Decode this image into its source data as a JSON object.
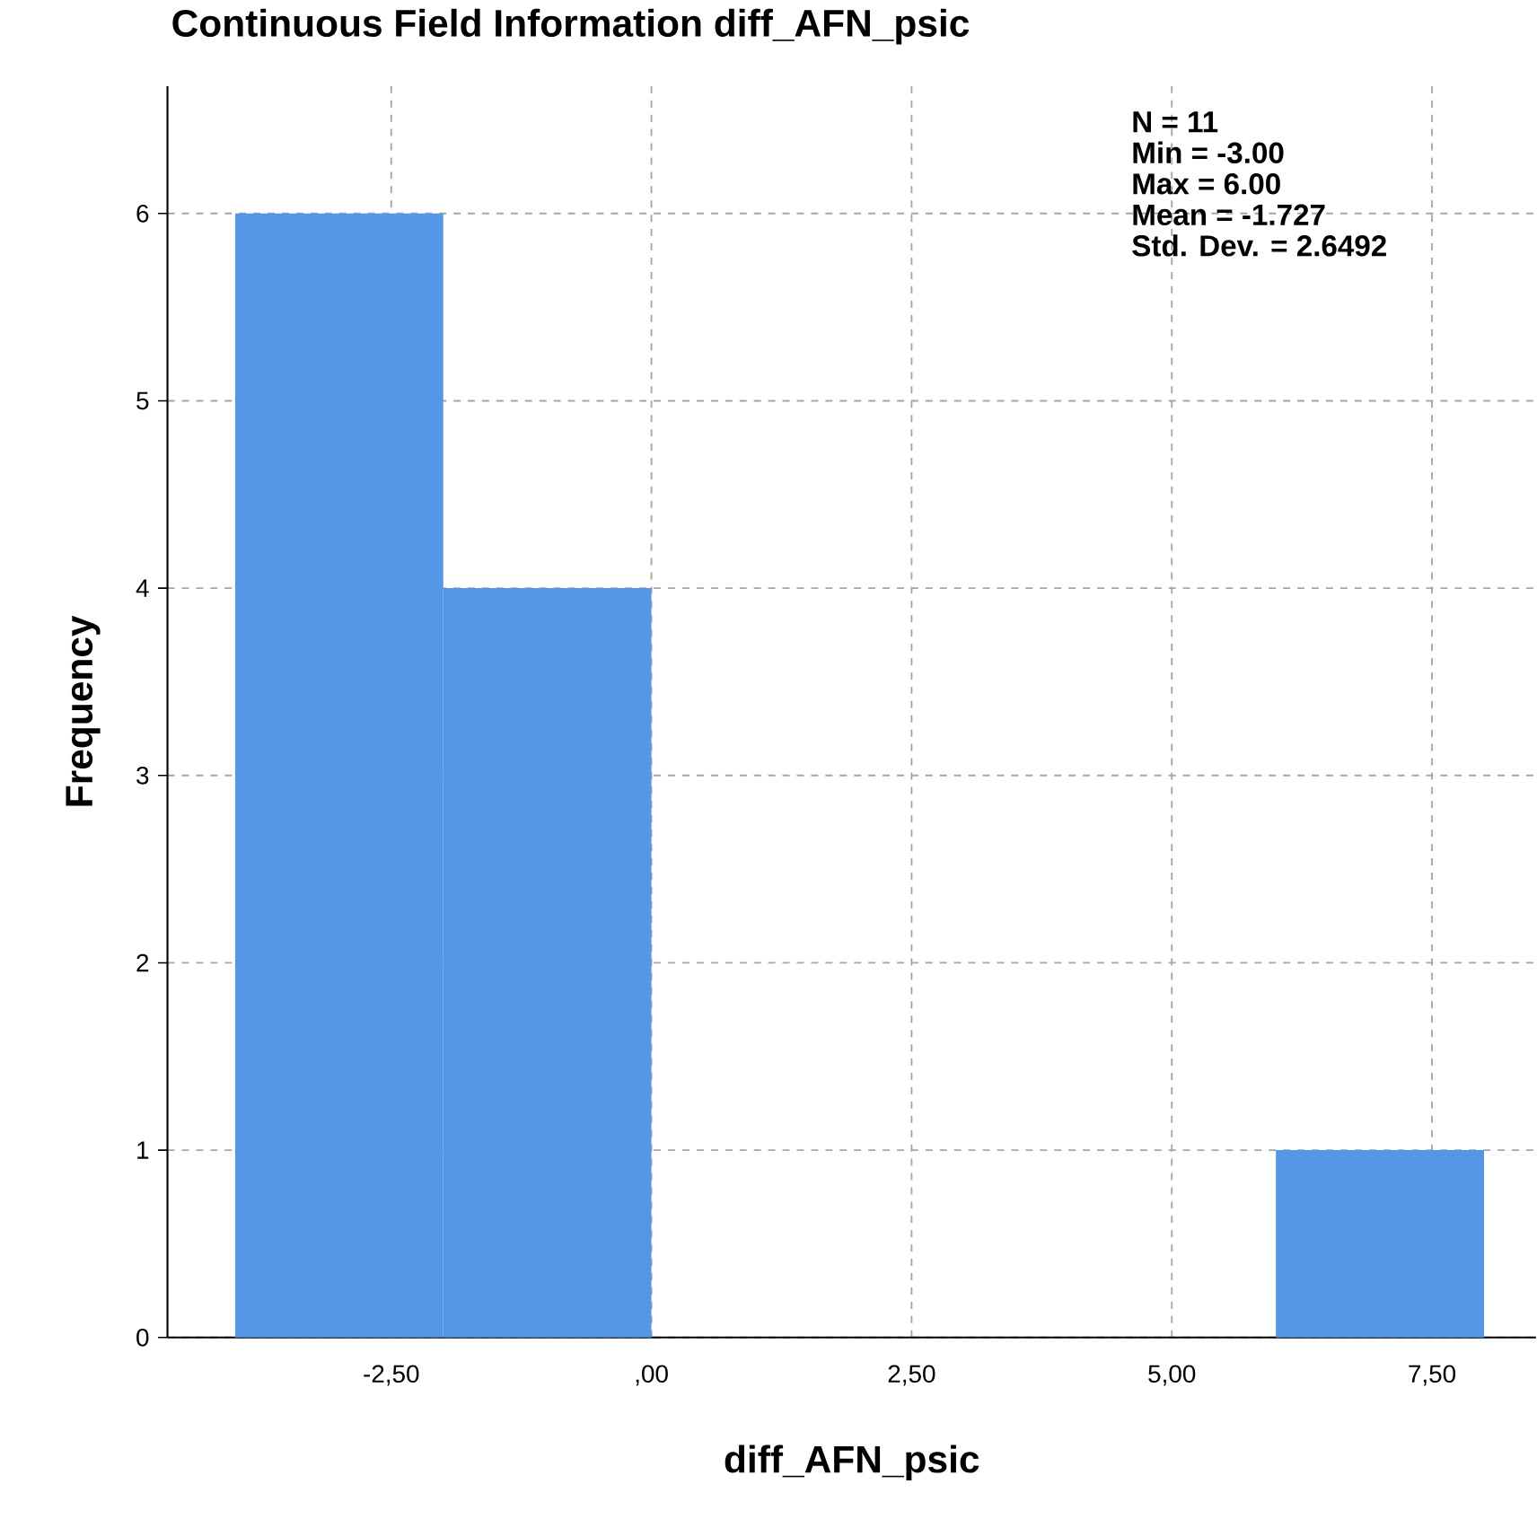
{
  "chart_data": {
    "type": "histogram",
    "title": "Continuous Field Information diff_AFN_psic",
    "xlabel": "diff_AFN_psic",
    "ylabel": "Frequency",
    "bins": [
      -4,
      -2,
      0,
      2,
      4,
      6,
      8
    ],
    "values": [
      6,
      4,
      0,
      0,
      0,
      1
    ],
    "color": "#5596e6",
    "xlim": [
      -4.65,
      8.5
    ],
    "ylim": [
      0,
      6.68
    ],
    "xticks": [
      {
        "value": -2.5,
        "label": "-2,50"
      },
      {
        "value": 0,
        "label": ",00"
      },
      {
        "value": 2.5,
        "label": "2,50"
      },
      {
        "value": 5,
        "label": "5,00"
      },
      {
        "value": 7.5,
        "label": "7,50"
      }
    ],
    "yticks": [
      0,
      1,
      2,
      3,
      4,
      5,
      6
    ],
    "grid": true,
    "annotations": [
      "N = 11",
      "Min = -3.00",
      "Max = 6.00",
      "Mean = -1.727",
      "Std. Dev. = 2.6492"
    ]
  }
}
